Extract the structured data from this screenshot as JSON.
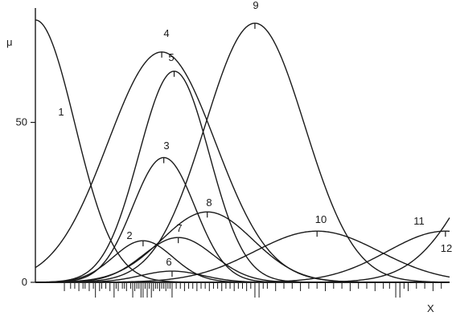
{
  "chart_data": {
    "type": "line",
    "title": "",
    "xlabel": "X",
    "ylabel": "μ",
    "xlim": [
      0,
      100
    ],
    "ylim": [
      0,
      85
    ],
    "yticks": [
      {
        "value": 0,
        "label": "0"
      },
      {
        "value": 50,
        "label": "50"
      }
    ],
    "grid": false,
    "legend": "none",
    "series": [
      {
        "label": "1",
        "kind": "decay",
        "amplitude": 82,
        "peak_x": 0,
        "width": 9.5,
        "show_peak_tick": false
      },
      {
        "label": "2",
        "kind": "gauss",
        "amplitude": 13,
        "peak_x": 26,
        "width": 7.2,
        "show_peak_tick": true
      },
      {
        "label": "3",
        "kind": "gauss",
        "amplitude": 39,
        "peak_x": 31,
        "width": 7.5,
        "show_peak_tick": true
      },
      {
        "label": "4",
        "kind": "gauss",
        "amplitude": 72,
        "peak_x": 30.5,
        "width": 13,
        "show_peak_tick": true
      },
      {
        "label": "5",
        "kind": "gauss",
        "amplitude": 66,
        "peak_x": 33.5,
        "width": 8.5,
        "show_peak_tick": true
      },
      {
        "label": "6",
        "kind": "gauss",
        "amplitude": 3.5,
        "peak_x": 33,
        "width": 7.5,
        "show_peak_tick": true
      },
      {
        "label": "7",
        "kind": "gauss",
        "amplitude": 14,
        "peak_x": 34.5,
        "width": 8.5,
        "show_peak_tick": true
      },
      {
        "label": "8",
        "kind": "gauss",
        "amplitude": 22,
        "peak_x": 41.5,
        "width": 11,
        "show_peak_tick": true
      },
      {
        "label": "9",
        "kind": "gauss",
        "amplitude": 81,
        "peak_x": 53,
        "width": 12,
        "show_peak_tick": true
      },
      {
        "label": "10",
        "kind": "gauss",
        "amplitude": 16,
        "peak_x": 68,
        "width": 15,
        "show_peak_tick": true
      },
      {
        "label": "11",
        "kind": "gauss",
        "amplitude": 16,
        "peak_x": 99,
        "width": 14,
        "show_peak_tick": true
      },
      {
        "label": "12",
        "kind": "rise",
        "amplitude": 16,
        "peak_x": 120,
        "width": 14,
        "show_peak_tick": false
      }
    ],
    "rug_x": [
      7,
      8.5,
      9.5,
      10.5,
      11.5,
      12,
      13,
      14,
      14.5,
      15.5,
      16,
      17,
      18,
      19,
      19.5,
      20,
      21,
      21.5,
      22,
      23,
      23.5,
      24,
      24.5,
      25,
      25.5,
      26,
      26.5,
      27,
      27.5,
      28,
      28.5,
      29,
      29.5,
      30,
      30.5,
      31,
      31.5,
      32,
      32.5,
      33,
      34,
      35,
      36,
      37,
      38,
      39,
      40,
      41,
      42,
      43,
      44,
      45,
      46,
      47,
      48,
      49,
      50,
      51,
      52,
      53,
      54,
      55,
      56,
      58,
      60,
      62,
      64,
      66,
      68,
      70,
      72,
      74,
      76,
      78,
      80,
      82,
      84,
      85.5,
      87,
      88,
      89,
      90,
      92,
      94,
      96,
      98
    ],
    "rug_long_x": [
      14.5,
      19,
      23.5,
      25.5,
      26,
      27,
      28,
      33,
      53,
      54,
      86,
      87,
      88
    ]
  }
}
